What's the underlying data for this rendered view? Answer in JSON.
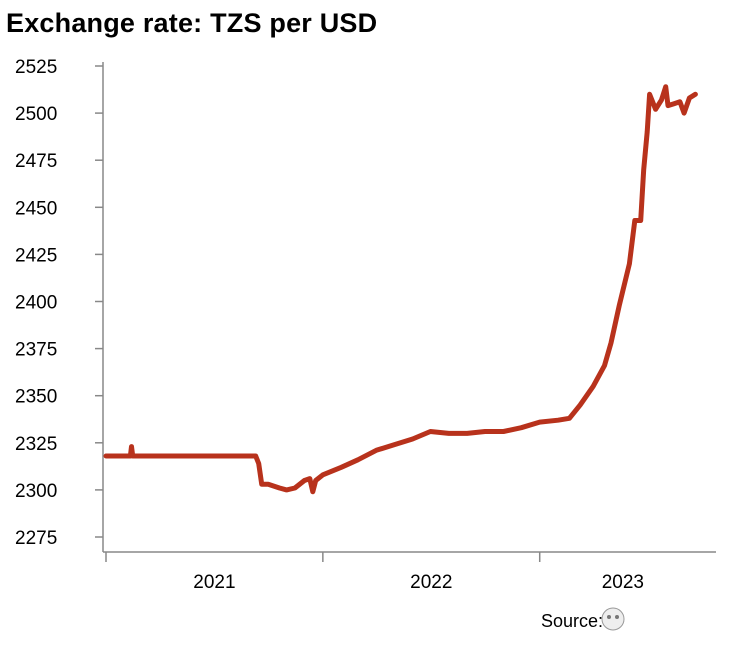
{
  "chart_data": {
    "type": "line",
    "title": "Exchange rate: TZS per USD",
    "xlabel": "",
    "ylabel": "",
    "ylim": [
      2275,
      2525
    ],
    "yticks": [
      2275,
      2300,
      2325,
      2350,
      2375,
      2400,
      2425,
      2450,
      2475,
      2500,
      2525
    ],
    "xlim": [
      "2021-01-01",
      "2023-10-18"
    ],
    "xtick_labels": [
      "2021",
      "2022",
      "2023"
    ],
    "grid": false,
    "legend": "none",
    "line_color": "#b8321c",
    "series": [
      {
        "points": [
          [
            "2021-01-01",
            2318
          ],
          [
            "2021-02-01",
            2318
          ],
          [
            "2021-02-11",
            2318
          ],
          [
            "2021-02-13",
            2323
          ],
          [
            "2021-02-15",
            2318
          ],
          [
            "2021-04-01",
            2318
          ],
          [
            "2021-06-01",
            2318
          ],
          [
            "2021-08-01",
            2318
          ],
          [
            "2021-09-10",
            2318
          ],
          [
            "2021-09-15",
            2314
          ],
          [
            "2021-09-20",
            2303
          ],
          [
            "2021-10-01",
            2303
          ],
          [
            "2021-10-20",
            2301
          ],
          [
            "2021-11-01",
            2300
          ],
          [
            "2021-11-15",
            2301
          ],
          [
            "2021-12-01",
            2305
          ],
          [
            "2021-12-10",
            2306
          ],
          [
            "2021-12-15",
            2299
          ],
          [
            "2021-12-20",
            2305
          ],
          [
            "2022-01-01",
            2308
          ],
          [
            "2022-02-01",
            2312
          ],
          [
            "2022-03-01",
            2316
          ],
          [
            "2022-04-01",
            2321
          ],
          [
            "2022-05-01",
            2324
          ],
          [
            "2022-06-01",
            2327
          ],
          [
            "2022-07-01",
            2331
          ],
          [
            "2022-08-01",
            2330
          ],
          [
            "2022-09-01",
            2330
          ],
          [
            "2022-10-01",
            2331
          ],
          [
            "2022-11-01",
            2331
          ],
          [
            "2022-12-01",
            2333
          ],
          [
            "2023-01-01",
            2336
          ],
          [
            "2023-02-01",
            2337
          ],
          [
            "2023-02-20",
            2338
          ],
          [
            "2023-03-10",
            2345
          ],
          [
            "2023-04-01",
            2355
          ],
          [
            "2023-04-20",
            2366
          ],
          [
            "2023-05-01",
            2378
          ],
          [
            "2023-05-15",
            2398
          ],
          [
            "2023-06-01",
            2420
          ],
          [
            "2023-06-10",
            2443
          ],
          [
            "2023-06-20",
            2443
          ],
          [
            "2023-06-25",
            2470
          ],
          [
            "2023-07-01",
            2490
          ],
          [
            "2023-07-05",
            2510
          ],
          [
            "2023-07-15",
            2502
          ],
          [
            "2023-07-25",
            2507
          ],
          [
            "2023-08-01",
            2514
          ],
          [
            "2023-08-05",
            2504
          ],
          [
            "2023-08-15",
            2505
          ],
          [
            "2023-08-25",
            2506
          ],
          [
            "2023-09-01",
            2500
          ],
          [
            "2023-09-10",
            2508
          ],
          [
            "2023-09-20",
            2510
          ]
        ]
      }
    ]
  },
  "source": "Source: "
}
